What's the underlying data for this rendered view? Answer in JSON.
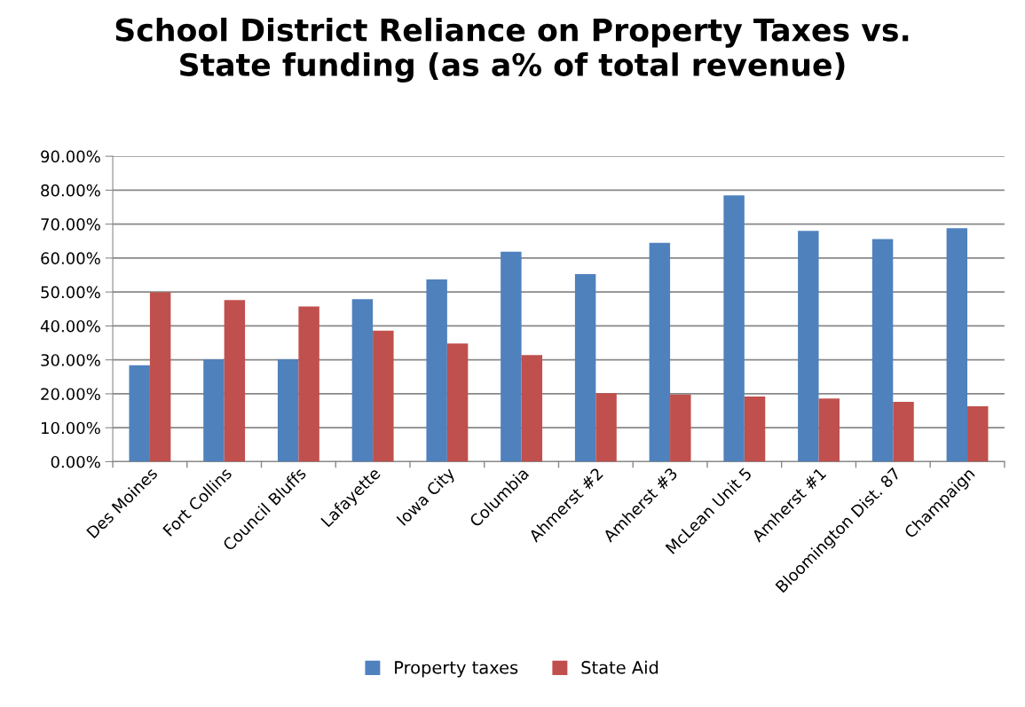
{
  "chart_data": {
    "type": "bar",
    "title": "School District Reliance on Property Taxes vs.\nState funding (as a% of total revenue)",
    "categories": [
      "Des Moines",
      "Fort Collins",
      "Council Bluffs",
      "Lafayette",
      "Iowa City",
      "Columbia",
      "Ahmerst #2",
      "Amherst #3",
      "McLean Unit 5",
      "Amherst #1",
      "Bloomington Dist. 87",
      "Champaign"
    ],
    "series": [
      {
        "name": "Property taxes",
        "color": "#4f81bd",
        "values": [
          28.4,
          30.1,
          30.2,
          47.9,
          53.7,
          61.9,
          55.3,
          64.5,
          78.5,
          68.0,
          65.6,
          68.8
        ]
      },
      {
        "name": "State Aid",
        "color": "#c0504d",
        "values": [
          49.9,
          47.6,
          45.7,
          38.6,
          34.8,
          31.4,
          20.2,
          19.8,
          19.2,
          18.6,
          17.6,
          16.3
        ]
      }
    ],
    "ylim": [
      0,
      90
    ],
    "yticks": [
      {
        "value": 0,
        "label": "0.00%"
      },
      {
        "value": 10,
        "label": "10.00%"
      },
      {
        "value": 20,
        "label": "20.00%"
      },
      {
        "value": 30,
        "label": "30.00%"
      },
      {
        "value": 40,
        "label": "40.00%"
      },
      {
        "value": 50,
        "label": "50.00%"
      },
      {
        "value": 60,
        "label": "60.00%"
      },
      {
        "value": 70,
        "label": "70.00%"
      },
      {
        "value": 80,
        "label": "80.00%"
      },
      {
        "value": 90,
        "label": "90.00%"
      }
    ],
    "grid": "y",
    "legend": "bottom"
  }
}
